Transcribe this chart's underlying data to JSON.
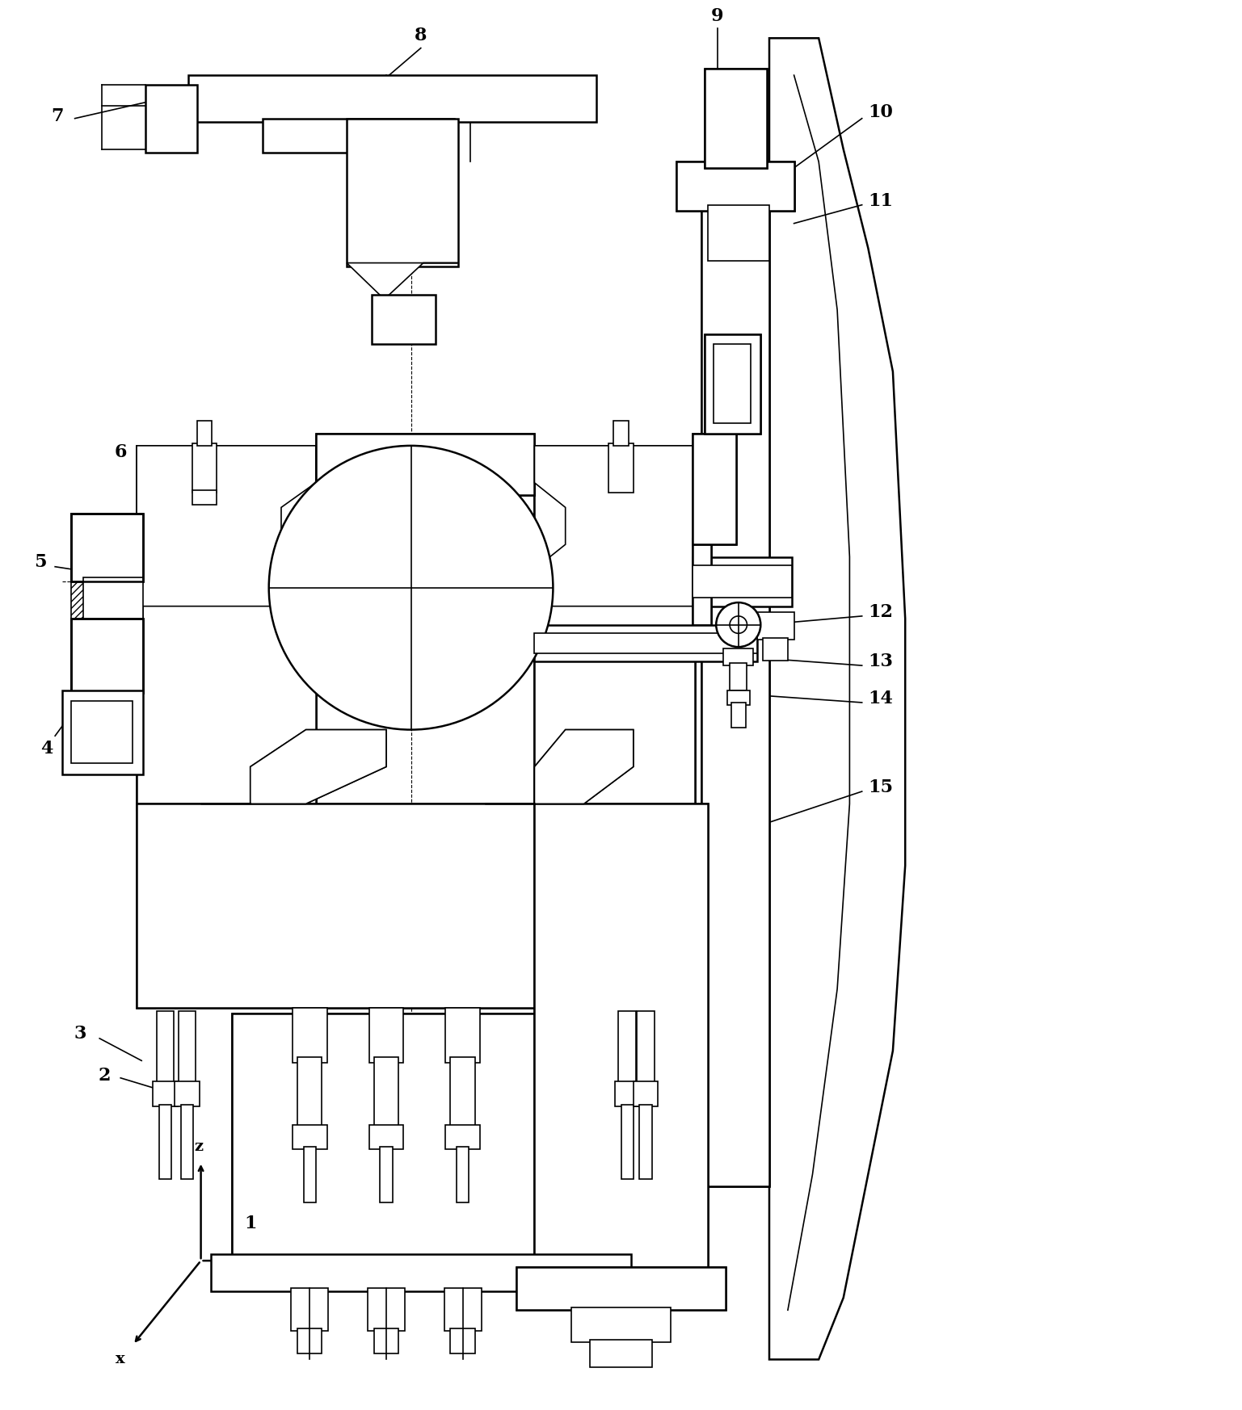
{
  "bg_color": "#ffffff",
  "line_color": "#000000",
  "figsize": [
    15.37,
    17.46
  ],
  "dpi": 100
}
